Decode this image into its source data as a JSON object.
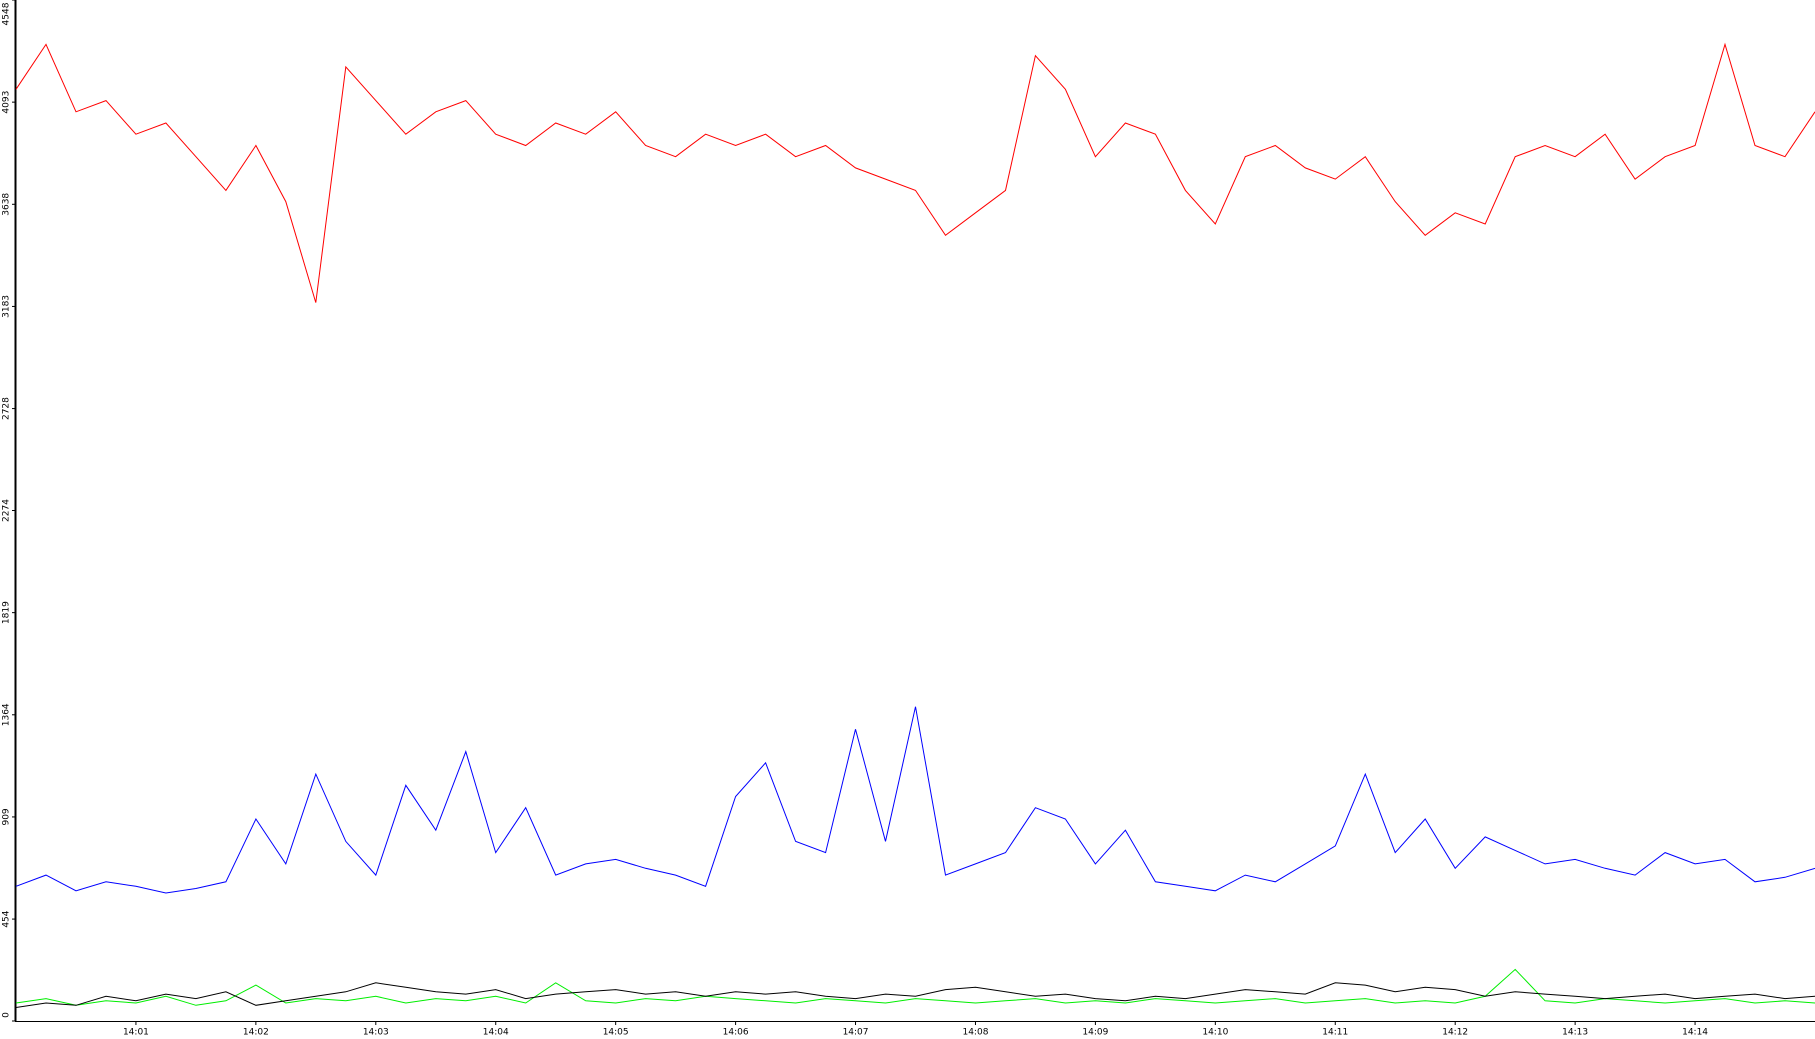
{
  "chart_data": {
    "type": "line",
    "x": [
      840,
      840.25,
      840.5,
      840.75,
      841,
      841.25,
      841.5,
      841.75,
      842,
      842.25,
      842.5,
      842.75,
      843,
      843.25,
      843.5,
      843.75,
      844,
      844.25,
      844.5,
      844.75,
      845,
      845.25,
      845.5,
      845.75,
      846,
      846.25,
      846.5,
      846.75,
      847,
      847.25,
      847.5,
      847.75,
      848,
      848.25,
      848.5,
      848.75,
      849,
      849.25,
      849.5,
      849.75,
      850,
      850.25,
      850.5,
      850.75,
      851,
      851.25,
      851.5,
      851.75,
      852,
      852.25,
      852.5,
      852.75,
      853,
      853.25,
      853.5,
      853.75,
      854,
      854.25,
      854.5,
      854.75,
      855
    ],
    "series": [
      {
        "color": "#ff0000",
        "values": [
          4150,
          4350,
          4050,
          4100,
          3950,
          4000,
          3850,
          3700,
          3900,
          3650,
          3200,
          4250,
          4100,
          3950,
          4050,
          4100,
          3950,
          3900,
          4000,
          3950,
          4050,
          3900,
          3850,
          3950,
          3900,
          3950,
          3850,
          3900,
          3800,
          3750,
          3700,
          3500,
          3600,
          3700,
          4300,
          4150,
          3850,
          4000,
          3950,
          3700,
          3550,
          3850,
          3900,
          3800,
          3750,
          3850,
          3650,
          3500,
          3600,
          3550,
          3850,
          3900,
          3850,
          3950,
          3750,
          3850,
          3900,
          4350,
          3900,
          3850,
          4050
        ]
      },
      {
        "color": "#0000ff",
        "values": [
          600,
          650,
          580,
          620,
          600,
          570,
          590,
          620,
          900,
          700,
          1100,
          800,
          650,
          1050,
          850,
          1200,
          750,
          950,
          650,
          700,
          720,
          680,
          650,
          600,
          1000,
          1150,
          800,
          750,
          1300,
          800,
          1400,
          650,
          700,
          750,
          950,
          900,
          700,
          850,
          620,
          600,
          580,
          650,
          620,
          700,
          780,
          1100,
          750,
          900,
          680,
          820,
          760,
          700,
          720,
          680,
          650,
          750,
          700,
          720,
          620,
          640,
          680
        ]
      },
      {
        "color": "#00ee00",
        "values": [
          80,
          100,
          70,
          90,
          80,
          110,
          70,
          90,
          160,
          80,
          100,
          90,
          110,
          80,
          100,
          90,
          110,
          80,
          170,
          90,
          80,
          100,
          90,
          110,
          100,
          90,
          80,
          100,
          90,
          80,
          100,
          90,
          80,
          90,
          100,
          80,
          90,
          80,
          100,
          90,
          80,
          90,
          100,
          80,
          90,
          100,
          80,
          90,
          80,
          110,
          230,
          90,
          80,
          100,
          90,
          80,
          90,
          100,
          80,
          90,
          80
        ]
      },
      {
        "color": "#000000",
        "values": [
          60,
          80,
          70,
          110,
          90,
          120,
          100,
          130,
          70,
          90,
          110,
          130,
          170,
          150,
          130,
          120,
          140,
          100,
          120,
          130,
          140,
          120,
          130,
          110,
          130,
          120,
          130,
          110,
          100,
          120,
          110,
          140,
          150,
          130,
          110,
          120,
          100,
          90,
          110,
          100,
          120,
          140,
          130,
          120,
          170,
          160,
          130,
          150,
          140,
          110,
          130,
          120,
          110,
          100,
          110,
          120,
          100,
          110,
          120,
          100,
          110
        ]
      }
    ],
    "xlim": [
      840,
      855
    ],
    "ylim": [
      0,
      4548
    ],
    "xticks": [
      {
        "value": 841,
        "label": "14:01"
      },
      {
        "value": 842,
        "label": "14:02"
      },
      {
        "value": 843,
        "label": "14:03"
      },
      {
        "value": 844,
        "label": "14:04"
      },
      {
        "value": 845,
        "label": "14:05"
      },
      {
        "value": 846,
        "label": "14:06"
      },
      {
        "value": 847,
        "label": "14:07"
      },
      {
        "value": 848,
        "label": "14:08"
      },
      {
        "value": 849,
        "label": "14:09"
      },
      {
        "value": 850,
        "label": "14:10"
      },
      {
        "value": 851,
        "label": "14:11"
      },
      {
        "value": 852,
        "label": "14:12"
      },
      {
        "value": 853,
        "label": "14:13"
      },
      {
        "value": 854,
        "label": "14:14"
      }
    ],
    "yticks": [
      0,
      454,
      909,
      1364,
      1819,
      2274,
      2728,
      3183,
      3638,
      4093,
      4548
    ]
  }
}
